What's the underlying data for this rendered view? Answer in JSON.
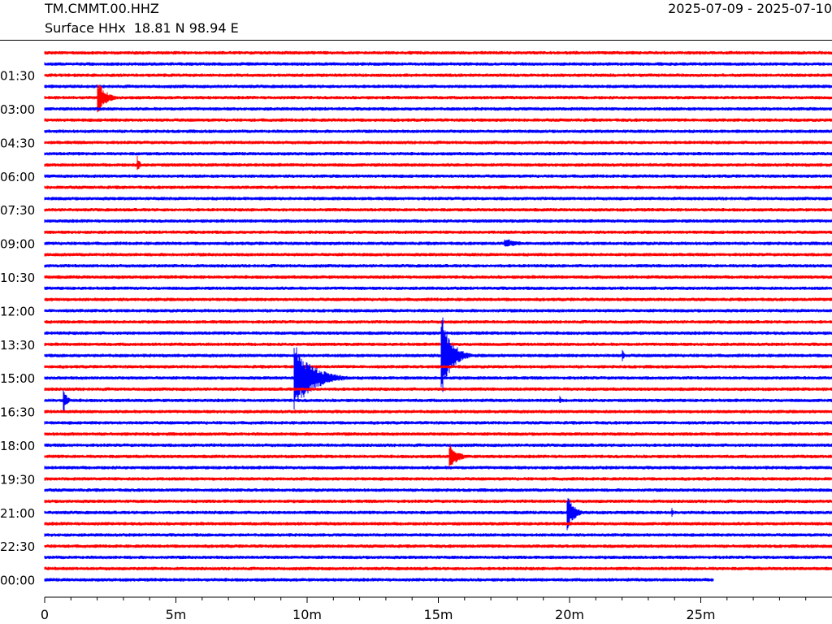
{
  "header": {
    "station": "TM.CMMT.00.HHZ",
    "subtitle": "Surface HHx  18.81 N 98.94 E",
    "date_range": "2025-07-09 - 2025-07-10"
  },
  "chart_data": {
    "type": "line",
    "plot_kind": "helicorder",
    "title": "TM.CMMT.00.HHZ",
    "xlabel": "",
    "ylabel": "",
    "x_unit": "minutes",
    "xlim": [
      0,
      30
    ],
    "x_ticks": [
      0,
      5,
      10,
      15,
      20,
      25
    ],
    "x_tick_labels": [
      "0",
      "5m",
      "10m",
      "15m",
      "20m",
      "25m"
    ],
    "x_minor_tick_step": 1,
    "row_interval_minutes": 30,
    "row_count": 48,
    "row_colors": [
      "#ff0000",
      "#0000ff"
    ],
    "y_tick_labels": [
      "01:30",
      "03:00",
      "04:30",
      "06:00",
      "07:30",
      "09:00",
      "10:30",
      "12:00",
      "13:30",
      "15:00",
      "16:30",
      "18:00",
      "19:30",
      "21:00",
      "22:30",
      "00:00"
    ],
    "y_tick_rows": [
      3,
      6,
      9,
      12,
      15,
      18,
      21,
      24,
      27,
      30,
      33,
      36,
      39,
      42,
      45,
      48
    ],
    "last_row_end_minute": 25.5,
    "grid": false,
    "legend": "none",
    "events": [
      {
        "row": 5,
        "start_minute": 2.0,
        "amplitude": 22,
        "duration_minutes": 1.3
      },
      {
        "row": 11,
        "start_minute": 3.5,
        "amplitude": 16,
        "duration_minutes": 0.4
      },
      {
        "row": 18,
        "start_minute": 17.5,
        "amplitude": 5,
        "duration_minutes": 3.5
      },
      {
        "row": 28,
        "start_minute": 15.1,
        "amplitude": 55,
        "duration_minutes": 1.5
      },
      {
        "row": 28,
        "start_minute": 22.0,
        "amplitude": 10,
        "duration_minutes": 0.3
      },
      {
        "row": 30,
        "start_minute": 9.5,
        "amplitude": 40,
        "duration_minutes": 3.0
      },
      {
        "row": 32,
        "start_minute": 0.7,
        "amplitude": 20,
        "duration_minutes": 0.5
      },
      {
        "row": 32,
        "start_minute": 19.6,
        "amplitude": 8,
        "duration_minutes": 0.3
      },
      {
        "row": 37,
        "start_minute": 15.4,
        "amplitude": 15,
        "duration_minutes": 1.5
      },
      {
        "row": 42,
        "start_minute": 19.9,
        "amplitude": 25,
        "duration_minutes": 1.0
      },
      {
        "row": 42,
        "start_minute": 23.9,
        "amplitude": 8,
        "duration_minutes": 0.2
      }
    ]
  }
}
